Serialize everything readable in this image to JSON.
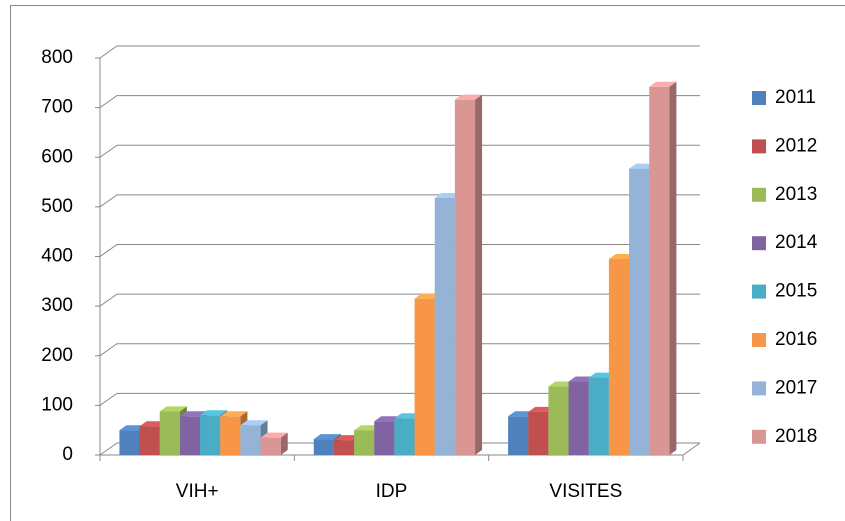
{
  "chart_data": {
    "type": "bar3d",
    "categories": [
      "VIH+",
      "IDP",
      "VISITES"
    ],
    "series": [
      {
        "name": "2011",
        "color": "#4f81bd",
        "values": [
          50,
          32,
          78
        ]
      },
      {
        "name": "2012",
        "color": "#c0504d",
        "values": [
          58,
          30,
          87
        ]
      },
      {
        "name": "2013",
        "color": "#9bbb59",
        "values": [
          88,
          50,
          138
        ]
      },
      {
        "name": "2014",
        "color": "#8064a2",
        "values": [
          78,
          68,
          148
        ]
      },
      {
        "name": "2015",
        "color": "#4bacc6",
        "values": [
          80,
          74,
          156
        ]
      },
      {
        "name": "2016",
        "color": "#f79646",
        "values": [
          78,
          315,
          395
        ]
      },
      {
        "name": "2017",
        "color": "#95b3d7",
        "values": [
          60,
          518,
          577
        ]
      },
      {
        "name": "2018",
        "color": "#d99694",
        "values": [
          35,
          716,
          742
        ]
      }
    ],
    "ylim": [
      0,
      800
    ],
    "yticks": [
      0,
      100,
      200,
      300,
      400,
      500,
      600,
      700,
      800
    ],
    "grid": true,
    "legend": "right"
  }
}
